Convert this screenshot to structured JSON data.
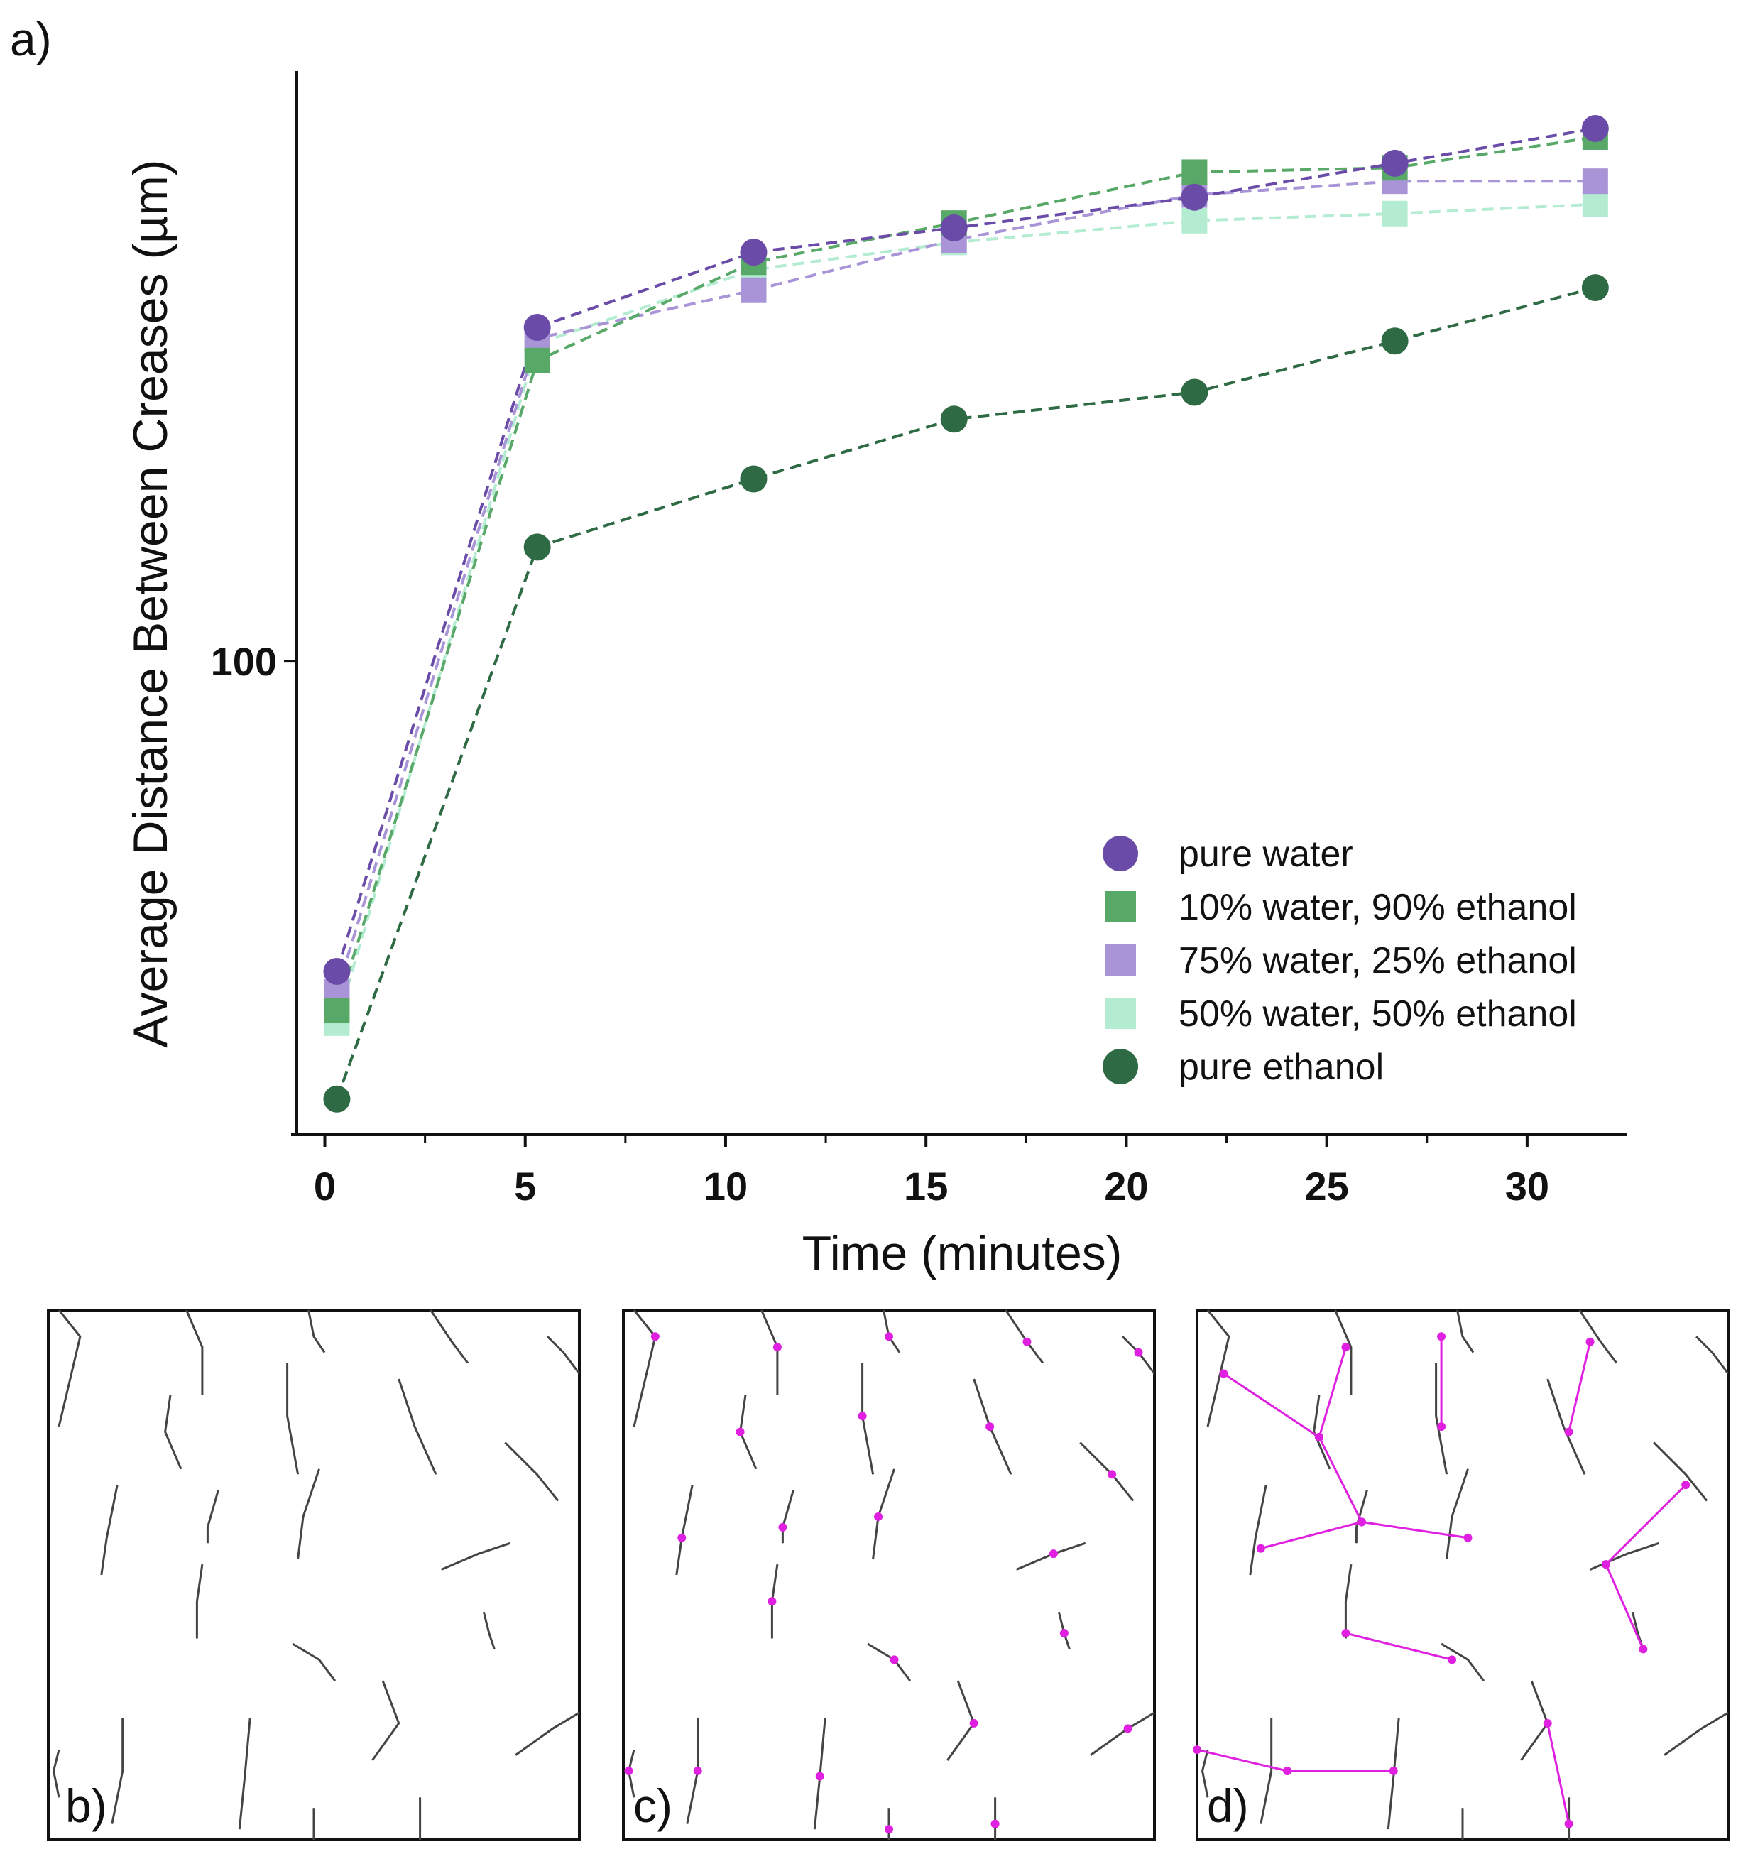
{
  "panel_labels": {
    "a": "a)",
    "b": "b)",
    "c": "c)",
    "d": "d)"
  },
  "colors": {
    "pure_water": "#6a4ca8",
    "w10_e90": "#58a868",
    "w75_e25": "#a894d6",
    "w50_e50": "#b4ecd2",
    "pure_ethanol": "#2e6b44",
    "axis": "#111111",
    "crease": "#444444",
    "marker": "#e020e0"
  },
  "chart_data": {
    "type": "line",
    "title": "",
    "xlabel": "Time (minutes)",
    "ylabel": "Average Distance Between Creases (µm)",
    "yscale": "log",
    "xlim": [
      -0.7,
      32.5
    ],
    "ylim": [
      56,
      206
    ],
    "xticks": [
      0,
      5,
      10,
      15,
      20,
      25,
      30
    ],
    "xtick_labels": [
      "0",
      "5",
      "10",
      "15",
      "20",
      "25",
      "30"
    ],
    "yticks": [
      100
    ],
    "ytick_labels": [
      "100"
    ],
    "grid": false,
    "legend_position": "lower-right",
    "series": [
      {
        "name": "pure water",
        "marker": "circle",
        "color_key": "pure_water",
        "x": [
          0.3,
          5.3,
          10.7,
          15.7,
          21.7,
          26.7,
          31.7
        ],
        "y": [
          68.4,
          150.5,
          165,
          170,
          176.5,
          184,
          192
        ]
      },
      {
        "name": "10% water, 90% ethanol",
        "marker": "square",
        "color_key": "w10_e90",
        "x": [
          0.3,
          5.3,
          10.7,
          15.7,
          21.7,
          26.7,
          31.7
        ],
        "y": [
          65.2,
          144.5,
          163,
          171,
          182,
          183,
          190
        ]
      },
      {
        "name": "75% water, 25% ethanol",
        "marker": "square",
        "color_key": "w75_e25",
        "x": [
          0.3,
          5.3,
          10.7,
          15.7,
          21.7,
          26.7,
          31.7
        ],
        "y": [
          66.7,
          148.5,
          157.5,
          167.5,
          177,
          180,
          180
        ]
      },
      {
        "name": "50% water, 50% ethanol",
        "marker": "square",
        "color_key": "w50_e50",
        "x": [
          0.3,
          5.3,
          10.7,
          15.7,
          21.7,
          26.7,
          31.7
        ],
        "y": [
          64.2,
          147.5,
          161.5,
          167,
          171.5,
          173,
          175
        ]
      },
      {
        "name": "pure ethanol",
        "marker": "circle",
        "color_key": "pure_ethanol",
        "x": [
          0.3,
          5.3,
          10.7,
          15.7,
          21.7,
          26.7,
          31.7
        ],
        "y": [
          58.5,
          115,
          125,
          134.5,
          139,
          148,
          158
        ]
      }
    ]
  }
}
